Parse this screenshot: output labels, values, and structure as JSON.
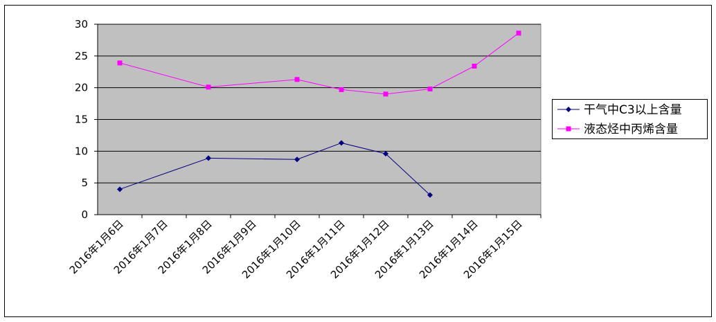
{
  "chart_data": {
    "type": "line",
    "categories": [
      "2016年1月6日",
      "2016年1月7日",
      "2016年1月8日",
      "2016年1月9日",
      "2016年1月10日",
      "2016年1月11日",
      "2016年1月12日",
      "2016年1月13日",
      "2016年1月14日",
      "2016年1月15日"
    ],
    "series": [
      {
        "name": "干气中C3以上含量",
        "color": "#000080",
        "marker": "diamond",
        "values": [
          4.0,
          null,
          8.9,
          null,
          8.7,
          11.3,
          9.6,
          3.1,
          null,
          null
        ]
      },
      {
        "name": "液态烃中丙烯含量",
        "color": "#ff00ff",
        "marker": "square",
        "values": [
          23.9,
          null,
          20.1,
          null,
          21.3,
          19.7,
          19.0,
          19.8,
          23.4,
          28.6
        ]
      }
    ],
    "connect_gaps": true,
    "ylim": [
      0,
      30
    ],
    "yticks": [
      0,
      5,
      10,
      15,
      20,
      25,
      30
    ],
    "grid": true,
    "legend": "right"
  }
}
